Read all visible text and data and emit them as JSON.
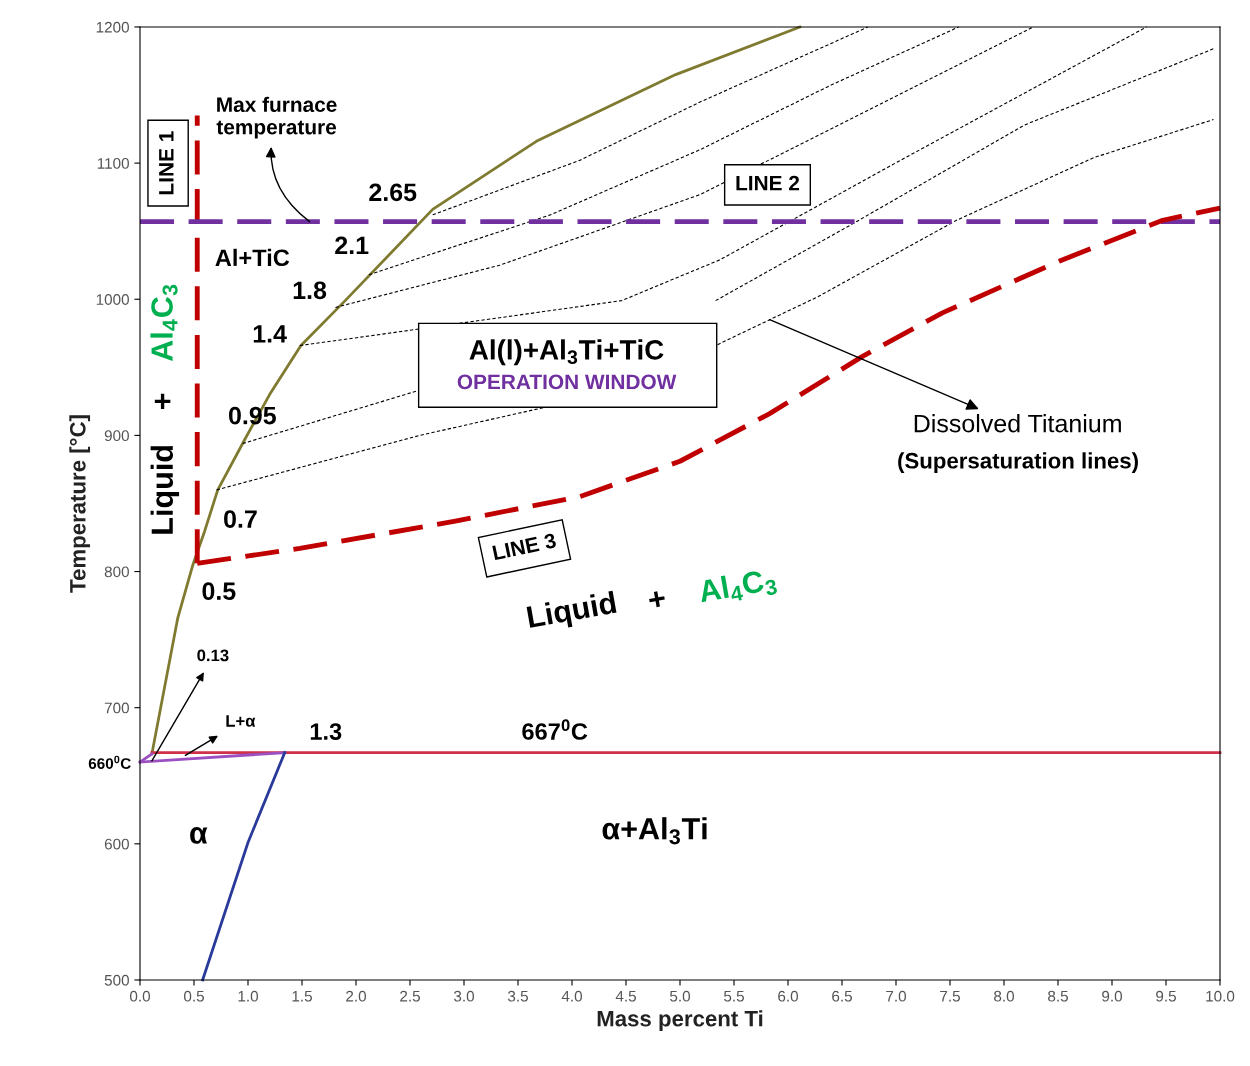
{
  "chart_data": {
    "type": "line",
    "xlabel": "Mass percent Ti",
    "ylabel": "Temperature [°C]",
    "xlim": [
      0,
      10
    ],
    "ylim": [
      500,
      1200
    ],
    "xticks": [
      {
        "value": 0,
        "label": "0.0"
      },
      {
        "value": 0.5,
        "label": "0.5"
      },
      {
        "value": 1,
        "label": "1.0"
      },
      {
        "value": 1.5,
        "label": "1.5"
      },
      {
        "value": 2,
        "label": "2.0"
      },
      {
        "value": 2.5,
        "label": "2.5"
      },
      {
        "value": 3,
        "label": "3.0"
      },
      {
        "value": 3.5,
        "label": "3.5"
      },
      {
        "value": 4,
        "label": "4.0"
      },
      {
        "value": 4.5,
        "label": "4.5"
      },
      {
        "value": 5,
        "label": "5.0"
      },
      {
        "value": 5.5,
        "label": "5.5"
      },
      {
        "value": 6,
        "label": "6.0"
      },
      {
        "value": 6.5,
        "label": "6.5"
      },
      {
        "value": 7,
        "label": "7.0"
      },
      {
        "value": 7.5,
        "label": "7.5"
      },
      {
        "value": 8,
        "label": "8.0"
      },
      {
        "value": 8.5,
        "label": "8.5"
      },
      {
        "value": 9,
        "label": "9.0"
      },
      {
        "value": 9.5,
        "label": "9.5"
      },
      {
        "value": 10,
        "label": "10.0"
      }
    ],
    "yticks": [
      500,
      600,
      700,
      800,
      900,
      1000,
      1100,
      1200
    ],
    "grid": false,
    "legend": false,
    "series": [
      {
        "color": "#7f7a30",
        "line_style": "solid",
        "x": [
          0.11,
          0.35,
          0.49,
          0.6,
          0.72,
          0.97,
          1.2,
          1.49,
          1.9,
          2.71,
          3.67,
          4.96,
          6.11
        ],
        "values": [
          666,
          766,
          805,
          830,
          860,
          897,
          930,
          966,
          999,
          1066,
          1116,
          1165,
          1200
        ]
      },
      {
        "color": "#000000",
        "line_style": "dashed",
        "x": [
          0.71,
          2.59,
          3.77,
          5.33,
          6.28,
          7.56,
          8.83,
          9.94
        ],
        "values": [
          860,
          900,
          921,
          966,
          1002,
          1058,
          1104,
          1132
        ]
      },
      {
        "color": "#000000",
        "line_style": "dashed",
        "x": [
          0.95,
          2.58,
          3.89,
          5.33,
          6.59,
          8.19,
          9.94
        ],
        "values": [
          894,
          933,
          null,
          999,
          1055,
          1128,
          1184
        ]
      },
      {
        "color": "#000000",
        "line_style": "dashed",
        "x": [
          1.48,
          2.3,
          4.46,
          5.37,
          7.04,
          9.32
        ],
        "values": [
          966,
          975,
          999,
          1029,
          1102,
          1200
        ]
      },
      {
        "color": "#000000",
        "line_style": "dashed",
        "x": [
          1.81,
          3.33,
          5.19,
          6.57,
          8.27
        ],
        "values": [
          994,
          1025,
          1077,
          1132,
          1200
        ]
      },
      {
        "color": "#000000",
        "line_style": "dashed",
        "x": [
          2.12,
          3.8,
          5.19,
          6.39,
          7.58
        ],
        "values": [
          1018,
          1062,
          1110,
          1157,
          1200
        ]
      },
      {
        "color": "#000000",
        "line_style": "dashed",
        "x": [
          2.71,
          4.07,
          5.19,
          6.74
        ],
        "values": [
          1062,
          1102,
          1145,
          1200
        ]
      },
      {
        "color": "#d0304a",
        "line_style": "solid",
        "x": [
          0.11,
          10
        ],
        "values": [
          667,
          667
        ]
      },
      {
        "color": "#9b4fc0",
        "line_style": "solid",
        "x": [
          0,
          1.34
        ],
        "values": [
          660,
          667
        ]
      },
      {
        "color": "#9b4fc0",
        "line_style": "solid",
        "x": [
          0,
          0.11
        ],
        "values": [
          660,
          666
        ]
      },
      {
        "color": "#2a3a9a",
        "line_style": "solid",
        "x": [
          1.34,
          1.0,
          0.58
        ],
        "values": [
          667,
          601,
          500
        ]
      },
      {
        "name": "LINE 1",
        "color": "#c00000",
        "line_style": "dashed",
        "x": [
          0.53,
          0.53
        ],
        "values": [
          806,
          1135
        ]
      },
      {
        "name": "LINE 2",
        "color": "#7030a0",
        "line_style": "dashed",
        "x": [
          0,
          10
        ],
        "values": [
          1057,
          1057
        ]
      },
      {
        "name": "LINE 3",
        "color": "#c00000",
        "line_style": "dashed",
        "x": [
          0.53,
          1.48,
          2.92,
          4.07,
          5.0,
          5.83,
          6.69,
          7.43,
          8.51,
          9.47,
          10
        ],
        "values": [
          806,
          817,
          837,
          855,
          881,
          916,
          958,
          990,
          1028,
          1058,
          1067
        ]
      }
    ],
    "annotations": [
      {
        "text": "Max furnace\ntemperature",
        "x": 1.57,
        "y": 1057
      },
      "2.65",
      "2.1",
      "1.8",
      "1.4",
      "0.95",
      "0.7",
      "0.5",
      {
        "text": "0.13",
        "x": 0.11,
        "y": 661
      },
      {
        "text": "L+α",
        "x": 0.42,
        "y": 665
      },
      {
        "text": "Dissolved Titanium",
        "x": 5.83,
        "y": 985
      },
      "(Supersaturation lines)",
      "1.3",
      "667$^{0}$C",
      "660$^{0}$C",
      "Al+TiC",
      "Liquid",
      "+",
      "Al$_{4}$C$_{3}$",
      "Liquid",
      "+",
      "Al$_{4}$C$_{3}$",
      "Al(l)+Al$_{3}$Ti+TiC",
      "OPERATION WINDOW",
      "α",
      "α+Al$_{3}$Ti"
    ]
  }
}
